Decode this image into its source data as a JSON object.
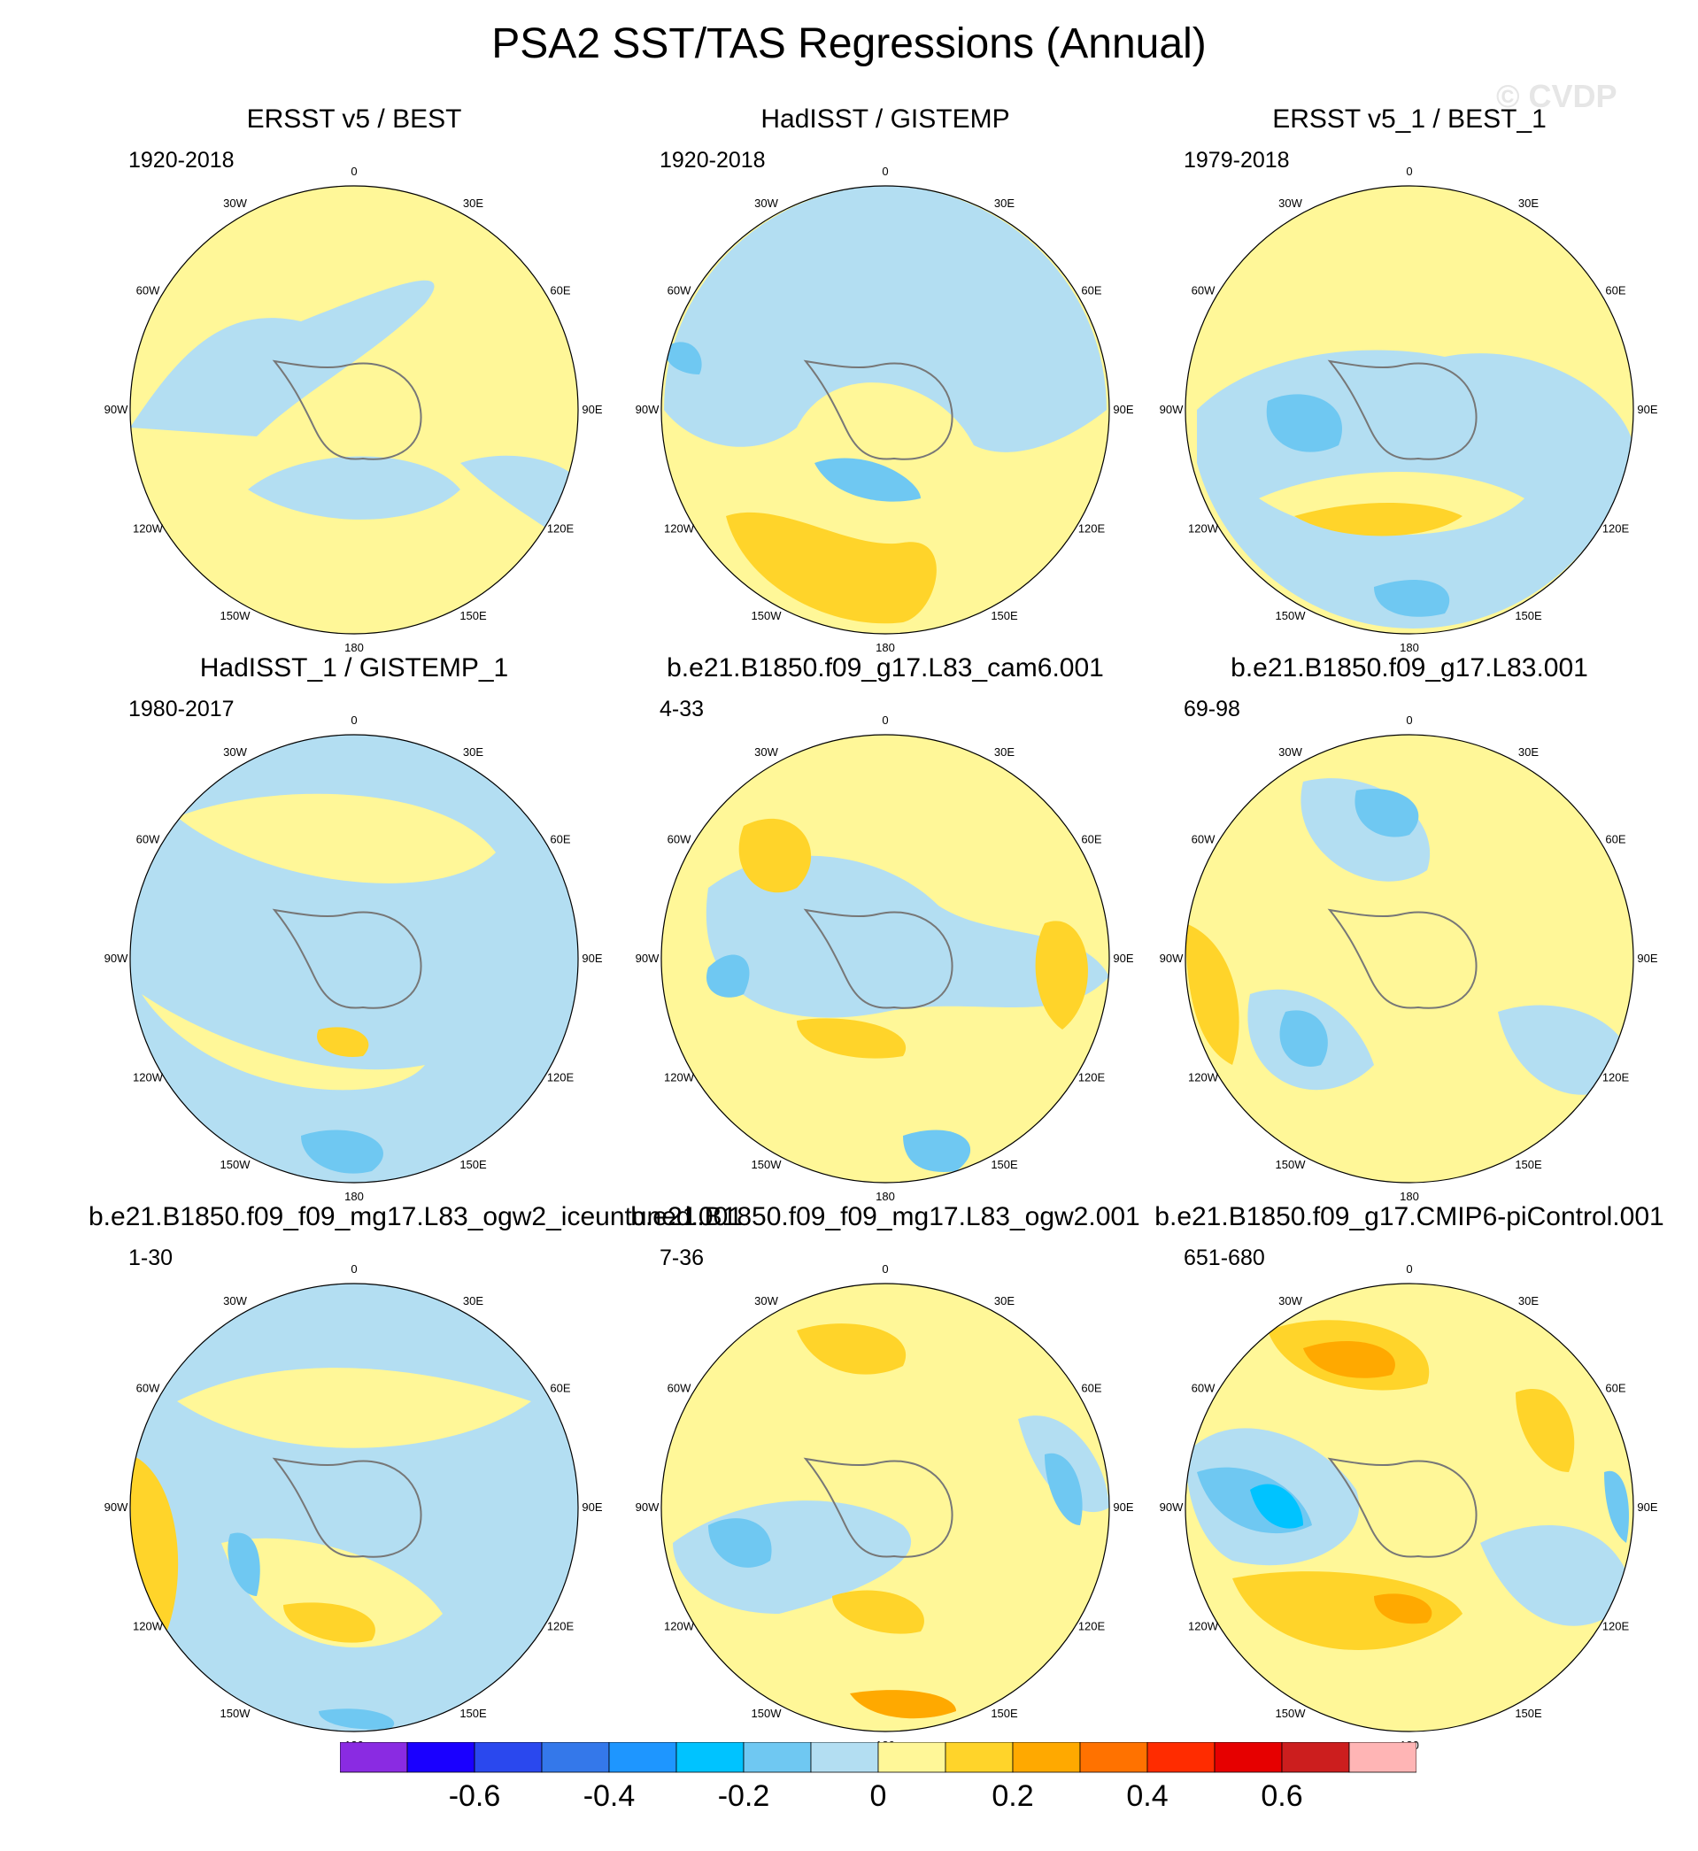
{
  "title": "PSA2 SST/TAS Regressions (Annual)",
  "watermark": "© CVDP",
  "longitude_labels": [
    "0",
    "30E",
    "60E",
    "90E",
    "120E",
    "150E",
    "180",
    "150W",
    "120W",
    "90W",
    "60W",
    "30W"
  ],
  "panels": [
    {
      "title": "ERSST v5 / BEST",
      "period": "1920-2018"
    },
    {
      "title": "HadISST / GISTEMP",
      "period": "1920-2018"
    },
    {
      "title": "ERSST v5_1 / BEST_1",
      "period": "1979-2018"
    },
    {
      "title": "HadISST_1 / GISTEMP_1",
      "period": "1980-2017"
    },
    {
      "title": "b.e21.B1850.f09_g17.L83_cam6.001",
      "period": "4-33"
    },
    {
      "title": "b.e21.B1850.f09_g17.L83.001",
      "period": "69-98"
    },
    {
      "title": "b.e21.B1850.f09_f09_mg17.L83_ogw2_iceuntuned.001",
      "period": "1-30"
    },
    {
      "title": "b.e21.B1850.f09_f09_mg17.L83_ogw2.001",
      "period": "7-36"
    },
    {
      "title": "b.e21.B1850.f09_g17.CMIP6-piControl.001",
      "period": "651-680"
    }
  ],
  "colorbar": {
    "colors": [
      "#8a2be2",
      "#1a00ff",
      "#2a48ee",
      "#3478ea",
      "#1e96ff",
      "#00c3ff",
      "#6fc8f2",
      "#b3def2",
      "#fff798",
      "#ffd42a",
      "#ffa900",
      "#ff7200",
      "#ff2c00",
      "#e60000",
      "#cc1e1e",
      "#ffb5b5"
    ],
    "tick_labels": [
      "-0.6",
      "-0.4",
      "-0.2",
      "0",
      "0.2",
      "0.4",
      "0.6"
    ],
    "tick_values": [
      -0.6,
      -0.4,
      -0.2,
      0,
      0.2,
      0.4,
      0.6
    ],
    "min": -0.8,
    "max": 0.8
  },
  "fill_colors": {
    "positive_weak": "#fff798",
    "negative_weak": "#b3def2",
    "positive_mid": "#ffd42a",
    "negative_mid": "#6fc8f2",
    "positive_strong": "#ffa900",
    "negative_strong": "#00c3ff"
  }
}
